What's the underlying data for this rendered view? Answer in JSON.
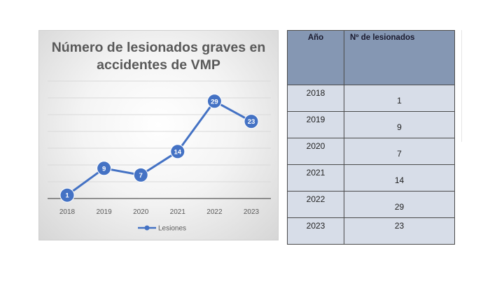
{
  "chart_data": {
    "type": "line",
    "title": "Número de lesionados graves en accidentes de VMP",
    "categories": [
      "2018",
      "2019",
      "2020",
      "2021",
      "2022",
      "2023"
    ],
    "series": [
      {
        "name": "Lesiones",
        "values": [
          1,
          9,
          7,
          14,
          29,
          23
        ]
      }
    ],
    "ylim": [
      0,
      35
    ],
    "grid": true,
    "legend": "bottom",
    "colors": {
      "line": "#4472c4",
      "marker": "#4472c4",
      "grid": "#d9d9d9",
      "axis": "#595959"
    }
  },
  "table": {
    "headers": [
      "Año",
      "Nº de lesionados"
    ],
    "rows": [
      {
        "year": "2018",
        "value": "1"
      },
      {
        "year": "2019",
        "value": "9"
      },
      {
        "year": "2020",
        "value": "7"
      },
      {
        "year": "2021",
        "value": "14"
      },
      {
        "year": "2022",
        "value": "29"
      },
      {
        "year": "2023",
        "value": "23"
      }
    ],
    "colors": {
      "header_bg": "#8597b3",
      "cell_bg": "#d7dde8"
    }
  }
}
